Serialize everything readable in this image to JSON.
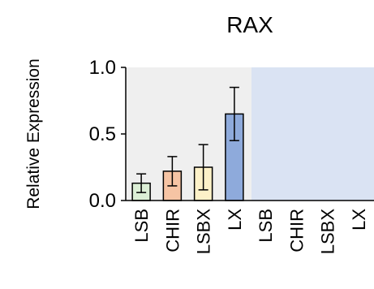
{
  "chart_data": {
    "type": "bar",
    "title": "RAX",
    "ylabel": "Relative Expression",
    "xlabel": "",
    "ylim": [
      0,
      1.0
    ],
    "yticks": [
      "0.0",
      "0.5",
      "1.0"
    ],
    "categories": [
      "LSB",
      "CHIR",
      "LSBX",
      "LX",
      "LSB",
      "CHIR",
      "LSBX",
      "LX"
    ],
    "values": [
      0.13,
      0.22,
      0.25,
      0.65,
      0,
      0,
      0,
      0
    ],
    "errors": [
      0.07,
      0.11,
      0.17,
      0.2,
      0,
      0,
      0,
      0
    ],
    "bar_colors": [
      "#dcefd6",
      "#f6c4a4",
      "#fdf1c8",
      "#8eaadb",
      "#dae3f3",
      "#dae3f3",
      "#dae3f3",
      "#dae3f3"
    ],
    "background_panels": [
      "#efefef",
      "#dae3f3"
    ],
    "grid": false,
    "legend": "none"
  }
}
